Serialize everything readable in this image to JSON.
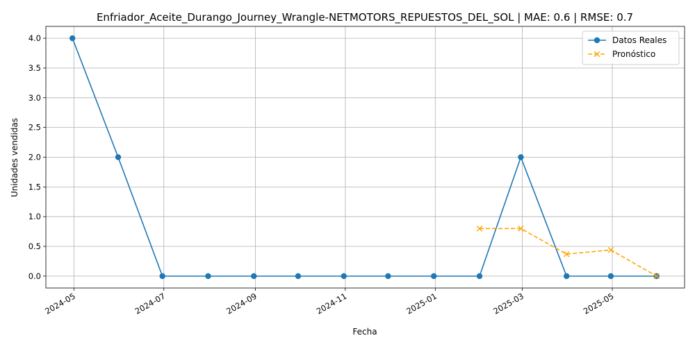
{
  "chart_data": {
    "type": "line",
    "title": "Enfriador_Aceite_Durango_Journey_Wrangle-NETMOTORS_REPUESTOS_DEL_SOL | MAE: 0.6 | RMSE: 0.7",
    "xlabel": "Fecha",
    "ylabel": "Unidades vendidas",
    "ylim": [
      -0.2,
      4.2
    ],
    "xlim": [
      "2024-04-12",
      "2025-06-19"
    ],
    "grid": true,
    "legend_position": "top-right",
    "x_ticks": [
      "2024-05",
      "2024-07",
      "2024-09",
      "2024-11",
      "2025-01",
      "2025-03",
      "2025-05"
    ],
    "y_ticks": [
      "0.0",
      "0.5",
      "1.0",
      "1.5",
      "2.0",
      "2.5",
      "3.0",
      "3.5",
      "4.0"
    ],
    "series": [
      {
        "name": "Datos Reales",
        "color": "#1f77b4",
        "style": "solid",
        "marker": "circle",
        "x": [
          "2024-04-30",
          "2024-05-31",
          "2024-06-30",
          "2024-07-31",
          "2024-08-31",
          "2024-09-30",
          "2024-10-31",
          "2024-11-30",
          "2024-12-31",
          "2025-01-31",
          "2025-02-28",
          "2025-03-31",
          "2025-04-30",
          "2025-05-31"
        ],
        "values": [
          4,
          2,
          0,
          0,
          0,
          0,
          0,
          0,
          0,
          0,
          2,
          0,
          0,
          0
        ]
      },
      {
        "name": "Pronóstico",
        "color": "#ffa500",
        "style": "dashed",
        "marker": "x",
        "x": [
          "2025-01-31",
          "2025-02-28",
          "2025-03-31",
          "2025-04-30",
          "2025-05-31"
        ],
        "values": [
          0.8,
          0.8,
          0.37,
          0.44,
          0.0
        ]
      }
    ]
  }
}
